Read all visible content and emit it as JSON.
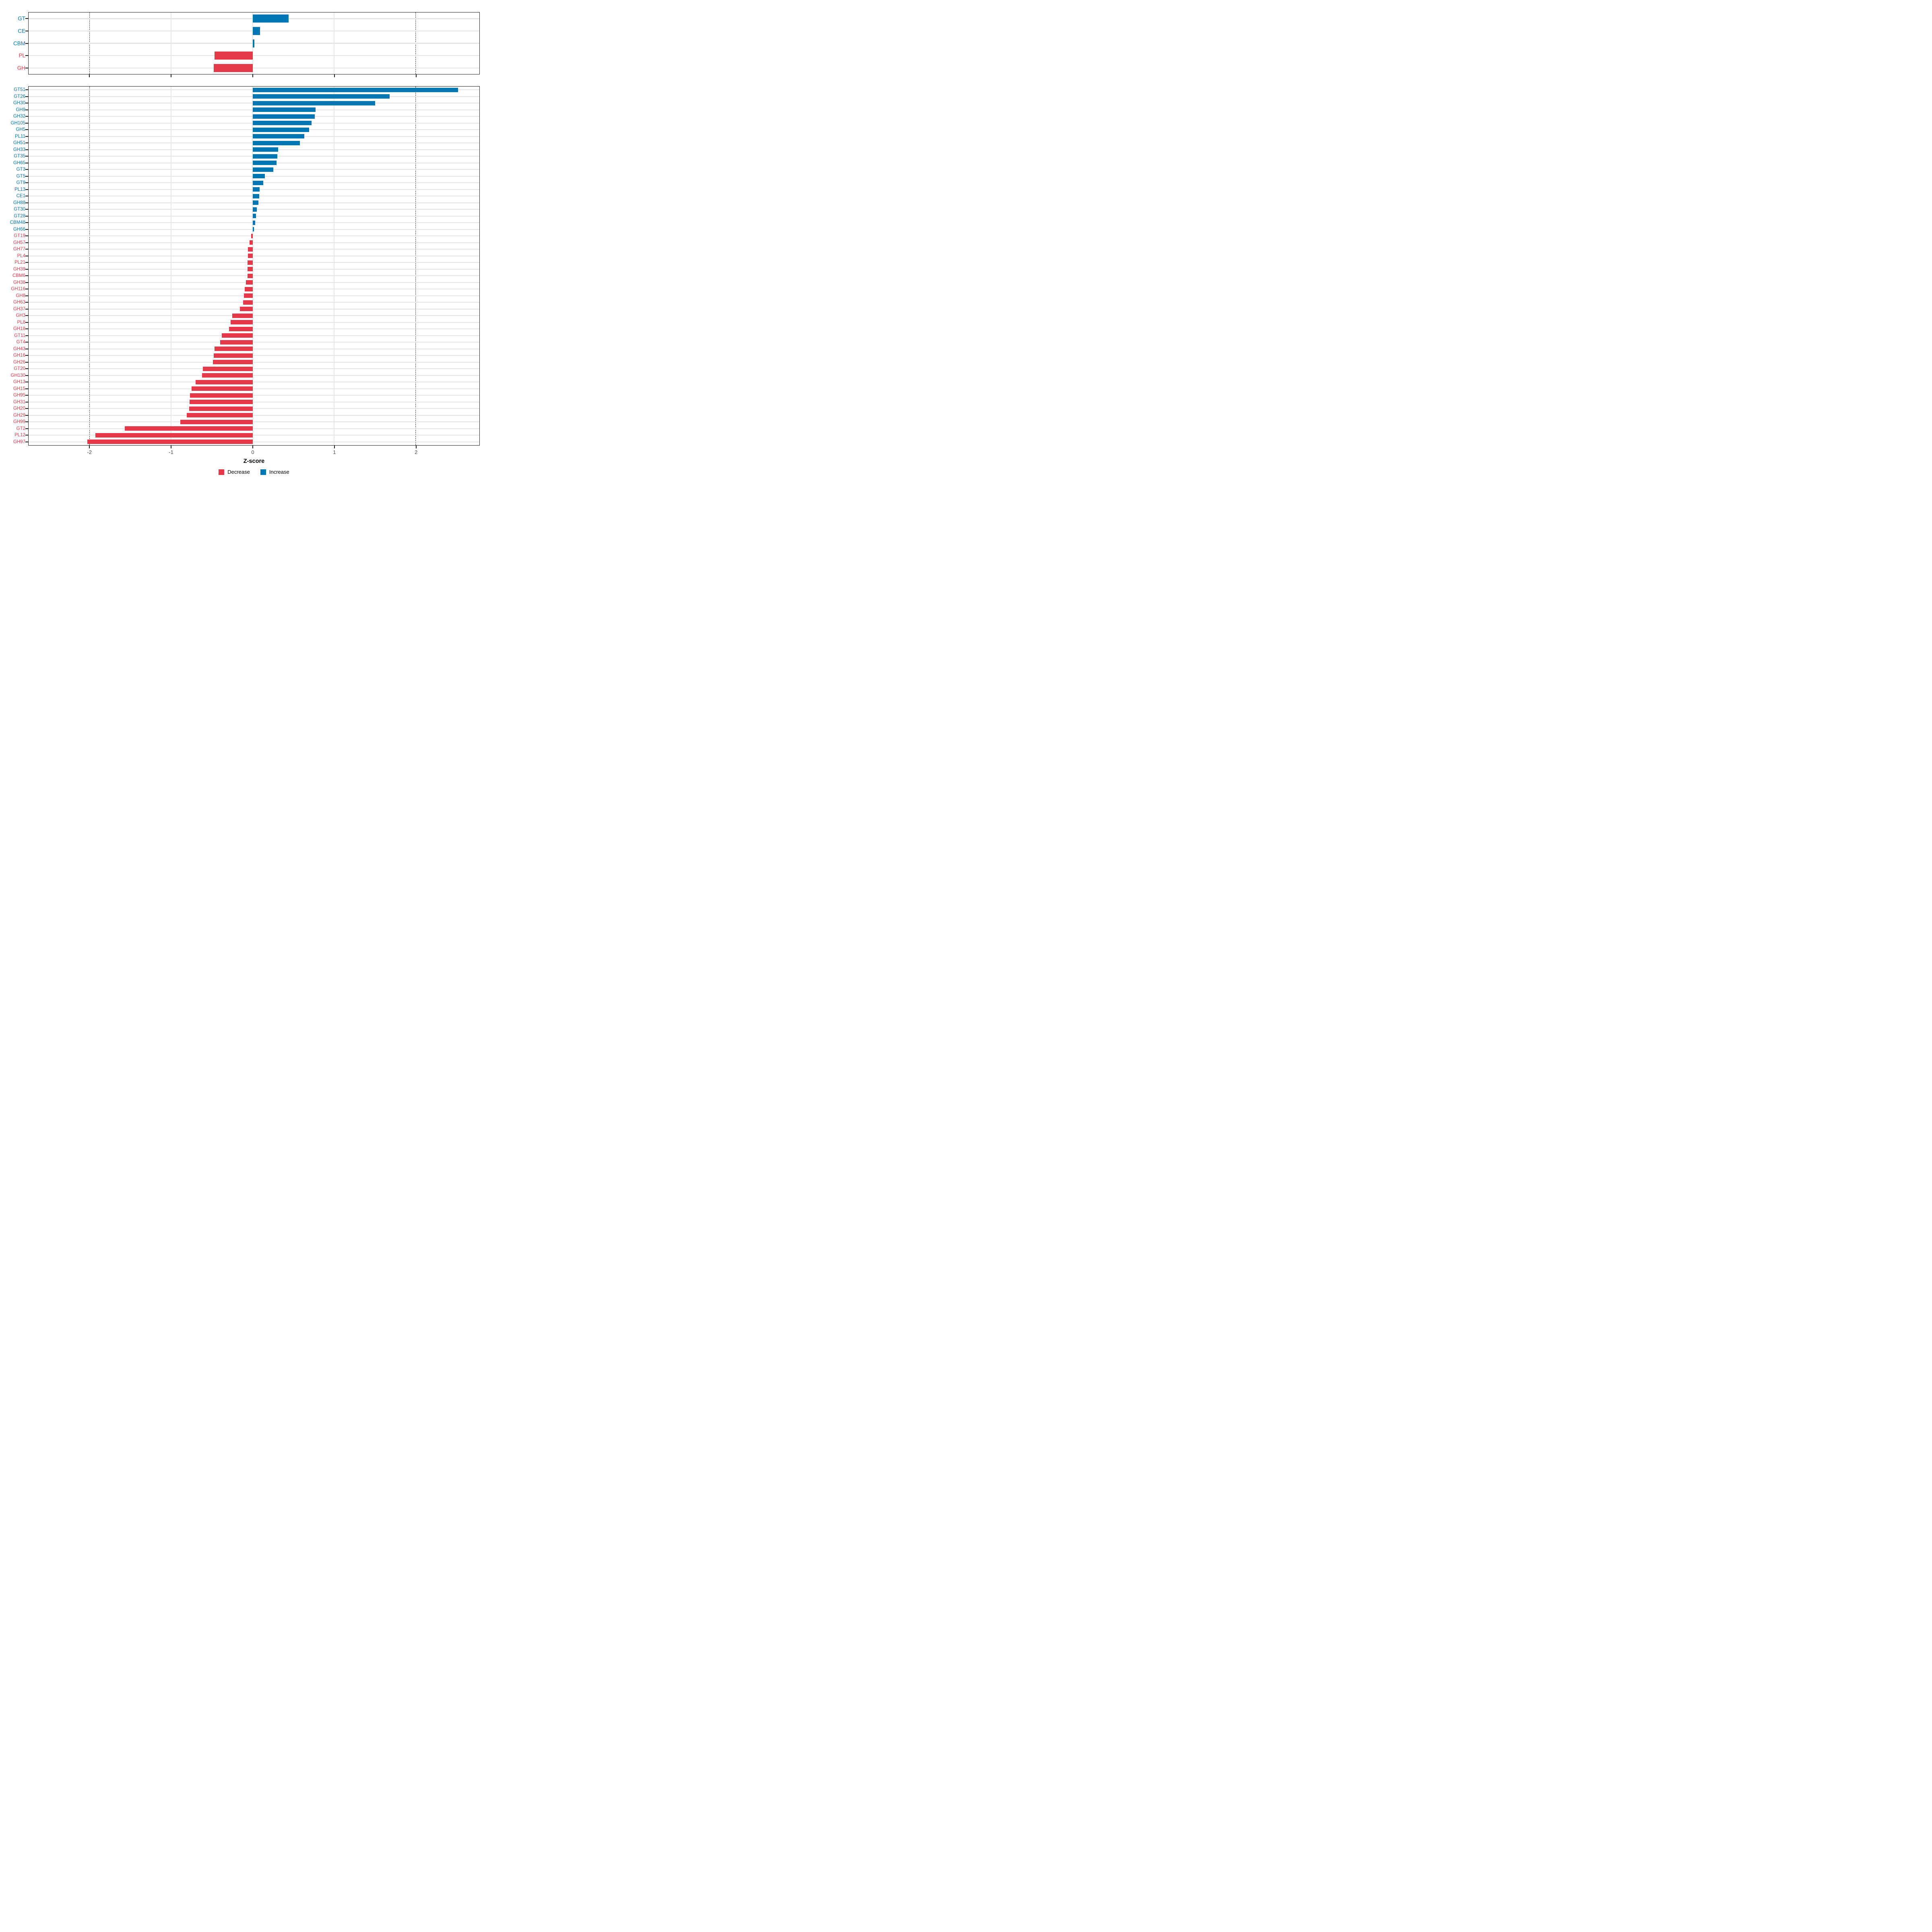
{
  "colors": {
    "increase": "#0076B4",
    "decrease": "#E53848",
    "grid": "#E4E4E4",
    "dashed_line": "#4A4A4A",
    "panel_border": "#1F1F1F",
    "axis_text": "#4D4D4D"
  },
  "axis": {
    "label": "Z-score",
    "ticks": [
      -2,
      -1,
      0,
      1,
      2
    ],
    "min": -2.75,
    "max": 2.78,
    "dashed_at": [
      -2,
      2
    ]
  },
  "legend": {
    "decrease_label": "Decrease",
    "increase_label": "Increase",
    "position": "bottom"
  },
  "chart_data": [
    {
      "type": "bar",
      "orientation": "horizontal",
      "panel": "top",
      "categories": [
        "GT",
        "CE",
        "CBM",
        "PL",
        "GH"
      ],
      "values": [
        0.44,
        0.09,
        0.02,
        -0.47,
        -0.48
      ],
      "xlabel": "Z-score",
      "xlim": [
        -2.75,
        2.78
      ],
      "grid": true,
      "legend_entries": [
        "Decrease",
        "Increase"
      ]
    },
    {
      "type": "bar",
      "orientation": "horizontal",
      "panel": "bottom",
      "categories": [
        "GT51",
        "GT26",
        "GH30",
        "GH9",
        "GH32",
        "GH105",
        "GH5",
        "PL11",
        "GH51",
        "GH33",
        "GT35",
        "GH65",
        "GT3",
        "GT5",
        "GT9",
        "PL13",
        "CE1",
        "GH88",
        "GT30",
        "GT28",
        "CBM48",
        "GH66",
        "GT19",
        "GH57",
        "GH77",
        "PL4",
        "PL21",
        "GH39",
        "CBM6",
        "GH38",
        "GH116",
        "GH8",
        "GH63",
        "GH37",
        "GH3",
        "PL8",
        "GH18",
        "GT11",
        "GT4",
        "GH43",
        "GH16",
        "GH26",
        "GT20",
        "GH130",
        "GH13",
        "GH15",
        "GH95",
        "GH31",
        "GH20",
        "GH29",
        "GH99",
        "GT2",
        "PL12",
        "GH97"
      ],
      "values": [
        2.52,
        1.68,
        1.5,
        0.77,
        0.76,
        0.72,
        0.69,
        0.63,
        0.58,
        0.31,
        0.3,
        0.29,
        0.25,
        0.15,
        0.13,
        0.085,
        0.08,
        0.07,
        0.05,
        0.04,
        0.028,
        0.016,
        -0.022,
        -0.038,
        -0.06,
        -0.06,
        -0.062,
        -0.063,
        -0.064,
        -0.082,
        -0.1,
        -0.11,
        -0.12,
        -0.16,
        -0.25,
        -0.27,
        -0.29,
        -0.38,
        -0.4,
        -0.47,
        -0.48,
        -0.49,
        -0.61,
        -0.62,
        -0.7,
        -0.75,
        -0.77,
        -0.775,
        -0.78,
        -0.81,
        -0.89,
        -1.57,
        -1.93,
        -2.03
      ],
      "xlabel": "Z-score",
      "xlim": [
        -2.75,
        2.78
      ],
      "grid": true,
      "legend_entries": [
        "Decrease",
        "Increase"
      ]
    }
  ]
}
